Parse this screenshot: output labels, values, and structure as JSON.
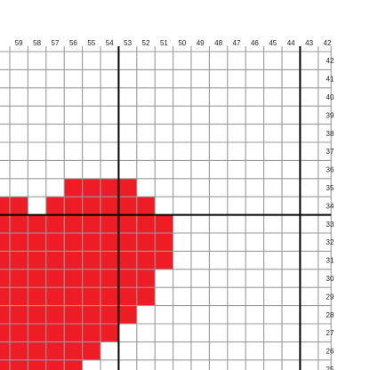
{
  "pattern": {
    "column_labels": [
      "59",
      "58",
      "57",
      "56",
      "55",
      "54",
      "53",
      "52",
      "51",
      "50",
      "49",
      "48",
      "47",
      "46",
      "45",
      "44",
      "43",
      "42"
    ],
    "row_labels": [
      "42",
      "41",
      "40",
      "39",
      "38",
      "37",
      "36",
      "35",
      "34",
      "33",
      "32",
      "31",
      "30",
      "29",
      "28",
      "27",
      "26",
      "25"
    ],
    "major_column_lines": [
      "53",
      "43"
    ],
    "major_row_lines": [
      "33"
    ],
    "colors": {
      "fill": "#ee1c25",
      "grid_line": "#9a9a9a",
      "major_line": "#000000",
      "background": "#ffffff",
      "label": "#222222"
    },
    "filled_cells": [
      {
        "row": "35",
        "from_col": "56",
        "to_col": "53"
      },
      {
        "row": "34",
        "from_col": "59",
        "to_col": "59"
      },
      {
        "row": "34",
        "from_col": "57",
        "to_col": "52"
      },
      {
        "row": "33",
        "from_col": "59",
        "to_col": "51"
      },
      {
        "row": "32",
        "from_col": "59",
        "to_col": "51"
      },
      {
        "row": "31",
        "from_col": "59",
        "to_col": "51"
      },
      {
        "row": "30",
        "from_col": "59",
        "to_col": "52"
      },
      {
        "row": "29",
        "from_col": "59",
        "to_col": "52"
      },
      {
        "row": "28",
        "from_col": "59",
        "to_col": "53"
      },
      {
        "row": "27",
        "from_col": "59",
        "to_col": "54"
      },
      {
        "row": "26",
        "from_col": "59",
        "to_col": "55"
      },
      {
        "row": "25",
        "from_col": "59",
        "to_col": "56"
      }
    ]
  }
}
